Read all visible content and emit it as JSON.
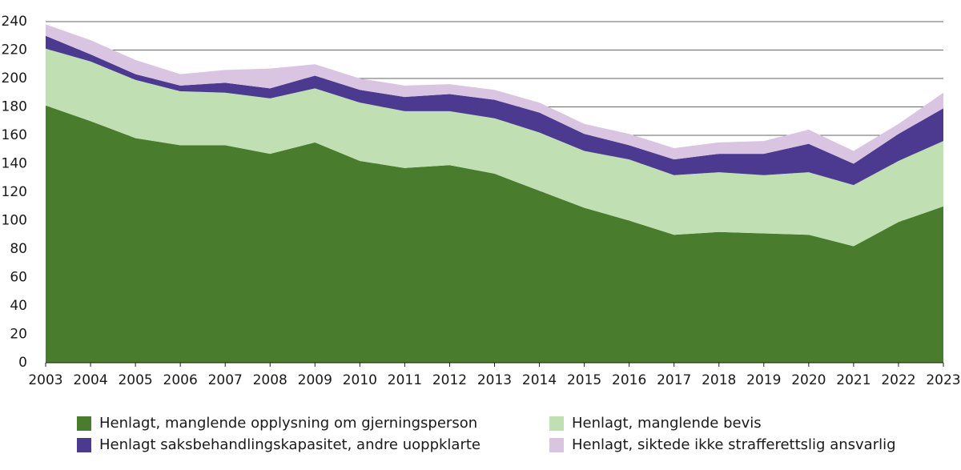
{
  "chart_data": {
    "type": "stacked-area",
    "categories": [
      "2003",
      "2004",
      "2005",
      "2006",
      "2007",
      "2008",
      "2009",
      "2010",
      "2011",
      "2012",
      "2013",
      "2014",
      "2015",
      "2016",
      "2017",
      "2018",
      "2019",
      "2020",
      "2021",
      "2022",
      "2023"
    ],
    "series": [
      {
        "name": "Henlagt, manglende opplysning om gjerningsperson",
        "color": "#4a7c2e",
        "values": [
          181,
          170,
          158,
          153,
          153,
          147,
          155,
          142,
          137,
          139,
          133,
          121,
          109,
          100,
          90,
          92,
          91,
          90,
          82,
          99,
          110
        ]
      },
      {
        "name": "Henlagt, manglende bevis",
        "color": "#c0e0b3",
        "values": [
          40,
          42,
          41,
          38,
          37,
          39,
          38,
          41,
          40,
          38,
          39,
          41,
          40,
          43,
          42,
          42,
          41,
          44,
          43,
          43,
          46
        ]
      },
      {
        "name": "Henlagt saksbehandlingskapasitet, andre uoppklarte",
        "color": "#4b3a8f",
        "values": [
          9,
          5,
          4,
          4,
          7,
          7,
          9,
          9,
          10,
          12,
          13,
          14,
          12,
          10,
          11,
          13,
          15,
          20,
          15,
          19,
          23
        ]
      },
      {
        "name": "Henlagt, siktede ikke strafferettslig ansvarlig",
        "color": "#d9c4e1",
        "values": [
          8,
          10,
          10,
          8,
          9,
          14,
          8,
          8,
          8,
          7,
          7,
          7,
          7,
          8,
          8,
          8,
          9,
          10,
          9,
          7,
          11
        ]
      }
    ],
    "ylim": [
      0,
      240
    ],
    "yticks": [
      0,
      20,
      40,
      60,
      80,
      100,
      120,
      140,
      160,
      180,
      200,
      220,
      240
    ],
    "grid": true
  }
}
